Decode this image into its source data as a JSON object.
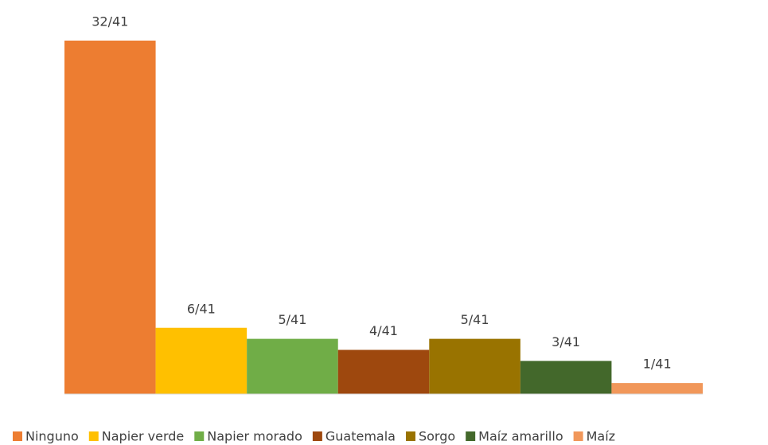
{
  "chart_data": {
    "type": "bar",
    "series": [
      {
        "name": "Ninguno",
        "color": "#ED7D31",
        "values": [
          32
        ],
        "value_labels": [
          "32/41"
        ]
      },
      {
        "name": "Napier verde",
        "color": "#FFC000",
        "values": [
          6
        ],
        "value_labels": [
          "6/41"
        ]
      },
      {
        "name": "Napier morado",
        "color": "#70AD47",
        "values": [
          5
        ],
        "value_labels": [
          "5/41"
        ]
      },
      {
        "name": "Guatemala",
        "color": "#9E480E",
        "values": [
          4
        ],
        "value_labels": [
          "4/41"
        ]
      },
      {
        "name": "Sorgo",
        "color": "#997300",
        "values": [
          5
        ],
        "value_labels": [
          "5/41"
        ]
      },
      {
        "name": "Maíz amarillo",
        "color": "#43682B",
        "values": [
          3
        ],
        "value_labels": [
          "3/41"
        ]
      },
      {
        "name": "Maíz",
        "color": "#F1975A",
        "values": [
          1
        ],
        "value_labels": [
          "1/41"
        ]
      }
    ],
    "legend": "bottom"
  }
}
